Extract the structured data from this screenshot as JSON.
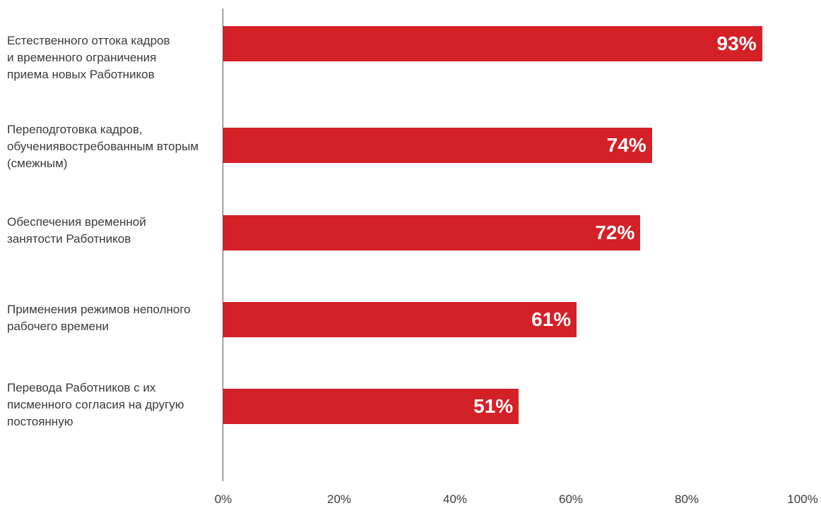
{
  "chart_data": {
    "type": "bar",
    "orientation": "horizontal",
    "title": "",
    "xlabel": "",
    "ylabel": "",
    "categories": [
      "Естественного оттока кадров\nи временного ограничения\nприема новых Работников",
      "Переподготовка кадров,\nобучениявостребованным вторым\n(смежным)",
      "Обеспечения временной\nзанятости Работников",
      "Применения режимов неполного\nрабочего времени",
      "Перевода Работников с их\nписменного согласия на другую\nпостоянную"
    ],
    "values": [
      93,
      74,
      72,
      61,
      51
    ],
    "value_labels": [
      "93%",
      "74%",
      "72%",
      "61%",
      "51%"
    ],
    "xlim": [
      0,
      100
    ],
    "x_ticks": [
      0,
      20,
      40,
      60,
      80,
      100
    ],
    "x_tick_labels": [
      "0%",
      "20%",
      "40%",
      "60%",
      "80%",
      "100%"
    ],
    "grid": false,
    "bar_color": "#d42027",
    "label_color": "#ffffff"
  }
}
